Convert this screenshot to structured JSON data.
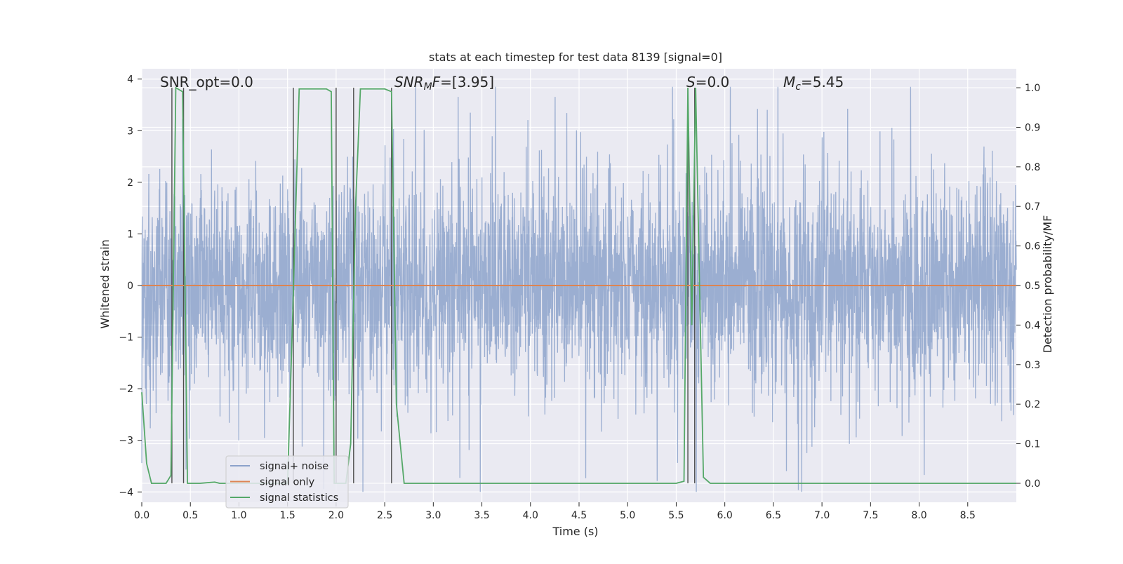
{
  "chart_data": {
    "type": "line",
    "title": "stats at each timestep for test data 8139 [signal=0]",
    "xlabel": "Time (s)",
    "ylabel": "Whitened strain",
    "y2label": "Detection probability/MF",
    "xlim": [
      0.0,
      9.0
    ],
    "ylim": [
      -4.2,
      4.2
    ],
    "y2lim": [
      -0.048,
      1.048
    ],
    "x_ticks": [
      "0.0",
      "0.5",
      "1.0",
      "1.5",
      "2.0",
      "2.5",
      "3.0",
      "3.5",
      "4.0",
      "4.5",
      "5.0",
      "5.5",
      "6.0",
      "6.5",
      "7.0",
      "7.5",
      "8.0",
      "8.5"
    ],
    "y_ticks": [
      "−4",
      "−3",
      "−2",
      "−1",
      "0",
      "1",
      "2",
      "3",
      "4"
    ],
    "y2_ticks": [
      "0.0",
      "0.1",
      "0.2",
      "0.3",
      "0.4",
      "0.5",
      "0.6",
      "0.7",
      "0.8",
      "0.9",
      "1.0"
    ],
    "grid": true,
    "legend_position": "lower-left",
    "background": "#eaeaf2",
    "annotations": {
      "snr_opt": "SNR_opt=0.0",
      "snr_mf_label": "SNR",
      "snr_mf_sub": "M",
      "snr_mf_after": "F",
      "snr_mf_value": "=[3.95]",
      "s_label": "S",
      "s_value": "=0.0",
      "mc_label": "M",
      "mc_sub": "c",
      "mc_value": "=5.45"
    },
    "series": [
      {
        "name": "signal+ noise",
        "color": "#4c72b0",
        "opacity": 0.5,
        "axis": "left",
        "description_stats": {
          "core_amplitude": 1.5,
          "typical_peak": 2.6,
          "max": 3.85,
          "min": -4.0
        }
      },
      {
        "name": "signal only",
        "color": "#dd8452",
        "axis": "left",
        "x": [
          0.0,
          9.0
        ],
        "y": [
          0.0,
          0.0
        ]
      },
      {
        "name": "signal statistics",
        "color": "#55a868",
        "axis": "right",
        "x": [
          0.0,
          0.05,
          0.1,
          0.25,
          0.3,
          0.35,
          0.42,
          0.47,
          0.5,
          0.6,
          0.75,
          0.8,
          0.9,
          1.5,
          1.55,
          1.62,
          1.9,
          1.95,
          1.98,
          2.1,
          2.15,
          2.2,
          2.25,
          2.5,
          2.57,
          2.62,
          2.7,
          3.0,
          5.5,
          5.58,
          5.62,
          5.66,
          5.7,
          5.74,
          5.78,
          5.85,
          6.5,
          9.0
        ],
        "y": [
          0.23,
          0.05,
          0.0,
          0.0,
          0.02,
          1.0,
          0.99,
          0.0,
          0.0,
          0.0,
          0.003,
          0.0,
          0.0,
          0.0,
          0.4,
          0.997,
          0.997,
          0.99,
          0.0,
          0.0,
          0.1,
          0.7,
          0.997,
          0.997,
          0.99,
          0.2,
          0.0,
          0.0,
          0.0,
          0.005,
          1.0,
          0.4,
          1.0,
          0.5,
          0.015,
          0.0,
          0.0,
          0.0
        ]
      }
    ],
    "vertical_markers_x": [
      0.31,
      0.43,
      1.56,
      2.0,
      2.18,
      2.57,
      5.62,
      5.69
    ],
    "legend_entries": [
      "signal+ noise",
      "signal only",
      "signal statistics"
    ]
  }
}
